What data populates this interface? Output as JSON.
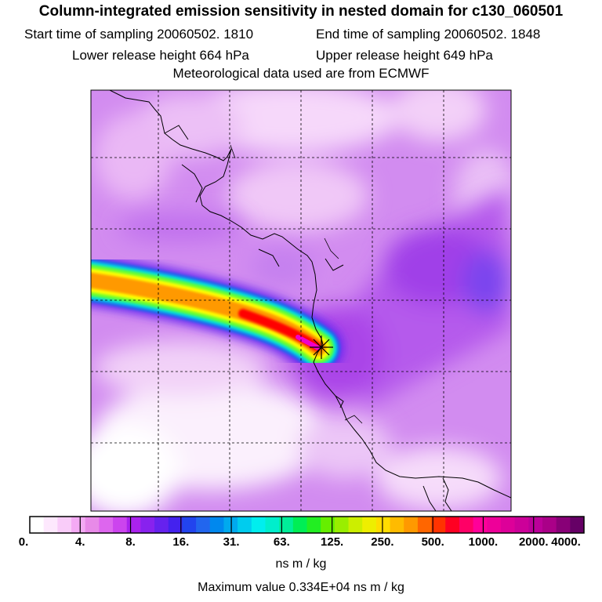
{
  "header": {
    "title": "Column-integrated emission sensitivity in nested domain for c130_060501",
    "start_label": "Start time of sampling 20060502.  1810",
    "end_label": "End time of sampling 20060502.  1848",
    "lower_label": "Lower release height  664 hPa",
    "upper_label": "Upper release height  649 hPa",
    "meteo_label": "Meteorological data used are from ECMWF"
  },
  "legend": {
    "tick_labels": [
      "0.",
      "4.",
      "8.",
      "16.",
      "31.",
      "63.",
      "125.",
      "250.",
      "500.",
      "1000.",
      "2000.",
      "4000."
    ],
    "colors": [
      "#ffffff",
      "#fde8fd",
      "#f9ccf9",
      "#f4aaf4",
      "#e88ae8",
      "#dd66ee",
      "#cc44ee",
      "#aa22ee",
      "#8822ee",
      "#6622ee",
      "#4422ee",
      "#2244ee",
      "#2266ee",
      "#0088ee",
      "#00aaee",
      "#00ccee",
      "#00eeee",
      "#00eecc",
      "#00ee99",
      "#00ee55",
      "#22ee22",
      "#66ee00",
      "#99ee00",
      "#ccee00",
      "#eeee00",
      "#ffdd00",
      "#ffbb00",
      "#ff9900",
      "#ff6600",
      "#ff3300",
      "#ff0022",
      "#ff0066",
      "#ff0099",
      "#ee0099",
      "#dd0099",
      "#cc0099",
      "#bb0099",
      "#aa0088",
      "#880077",
      "#660066"
    ],
    "units": "ns m / kg",
    "max_value": "Maximum value  0.334E+04 ns m / kg"
  },
  "map": {
    "background_color": "#d28cf0",
    "plume_colors": [
      "#ee00cc",
      "#ff0000",
      "#ff9900",
      "#ffff00",
      "#66ff33",
      "#00dddd"
    ]
  }
}
